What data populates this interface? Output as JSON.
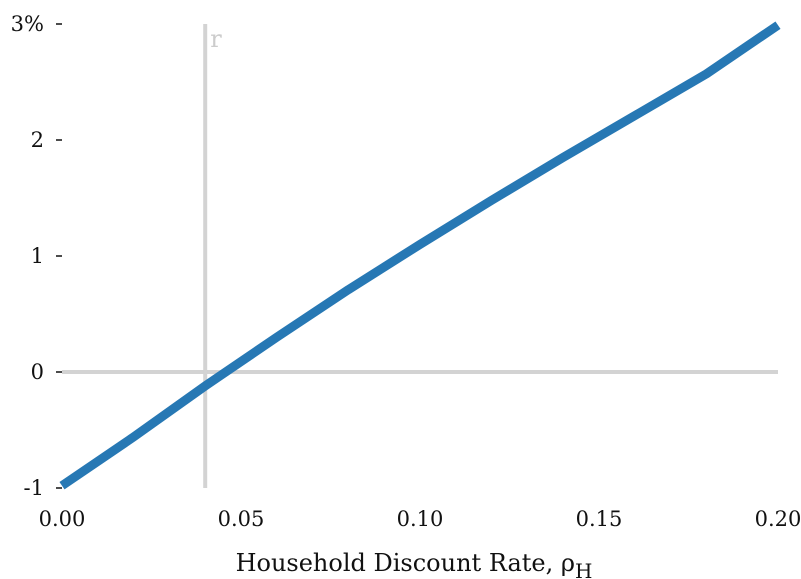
{
  "chart_data": {
    "type": "line",
    "title": "",
    "xlabel": "Household Discount Rate, ρ",
    "xlabel_subscript": "H",
    "ylabel": "",
    "xlim": [
      0.0,
      0.2
    ],
    "ylim": [
      -1,
      3
    ],
    "x_ticks": [
      0.0,
      0.05,
      0.1,
      0.15,
      0.2
    ],
    "x_tick_labels": [
      "0.00",
      "0.05",
      "0.10",
      "0.15",
      "0.20"
    ],
    "y_ticks": [
      -1,
      0,
      1,
      2,
      3
    ],
    "y_tick_labels": [
      "-1",
      "0",
      "1",
      "2",
      "3%"
    ],
    "grid": false,
    "reference_lines": {
      "horizontal_y": 0,
      "vertical_x": 0.04,
      "vertical_label": "r",
      "color": "#d3d3d3"
    },
    "series": [
      {
        "color": "#2778b4",
        "x": [
          0.0,
          0.02,
          0.04,
          0.06,
          0.08,
          0.1,
          0.12,
          0.14,
          0.16,
          0.18,
          0.2
        ],
        "y": [
          -0.98,
          -0.56,
          -0.12,
          0.3,
          0.71,
          1.1,
          1.48,
          1.85,
          2.21,
          2.57,
          2.99
        ]
      }
    ]
  }
}
